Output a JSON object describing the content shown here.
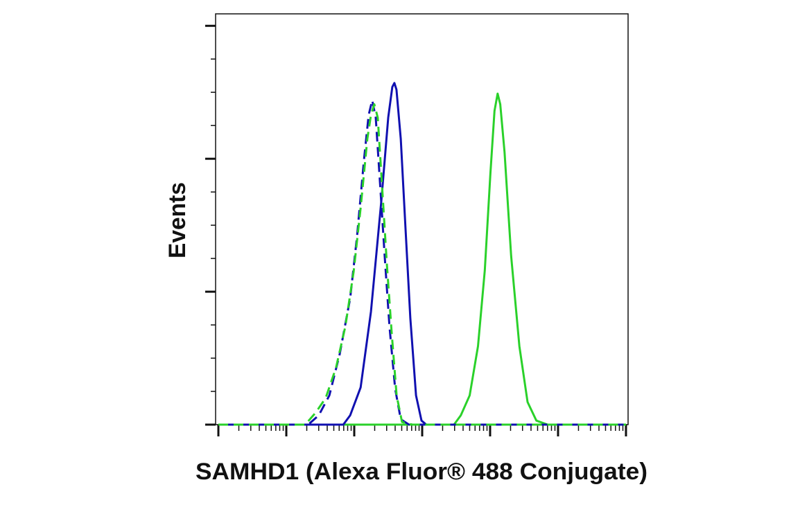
{
  "chart_data": {
    "type": "line",
    "xlabel": "SAMHD1 (Alexa Fluor® 488 Conjugate)",
    "ylabel": "Events",
    "xscale": "log",
    "xlim": [
      0.91,
      1074000
    ],
    "xticks": [
      1,
      10,
      100,
      1000,
      10000,
      100000,
      1000000
    ],
    "xminorticks": [
      2,
      3,
      4,
      5,
      6,
      7,
      8,
      9,
      20,
      30,
      40,
      50,
      60,
      70,
      80,
      90,
      200,
      300,
      400,
      500,
      600,
      700,
      800,
      900,
      2000,
      3000,
      4000,
      5000,
      6000,
      7000,
      8000,
      9000,
      20000,
      30000,
      40000,
      50000,
      60000,
      70000,
      80000,
      90000,
      200000,
      300000,
      400000,
      500000,
      600000,
      700000,
      800000,
      900000
    ],
    "ylim": [
      0,
      309
    ],
    "yticks": [
      0,
      100,
      200,
      300
    ],
    "yminorticks": [
      25,
      50,
      75,
      125,
      150,
      175,
      225,
      250,
      275
    ],
    "series": [
      {
        "color": "#2ad12a",
        "dashed": false,
        "x": [
          1,
          2940,
          3700,
          5000,
          6630,
          8350,
          10100,
          11600,
          12900,
          14100,
          16300,
          20400,
          27000,
          35600,
          48000,
          70300,
          1000000
        ],
        "values": [
          0,
          0,
          7,
          22,
          59,
          116,
          189,
          236,
          249,
          241,
          205,
          127,
          59,
          17,
          3,
          0,
          0
        ]
      },
      {
        "color": "#1010b0",
        "dashed": false,
        "x": [
          1,
          69,
          87,
          124,
          176,
          250,
          316,
          363,
          390,
          418,
          484,
          569,
          670,
          811,
          976,
          1150,
          1000000
        ],
        "values": [
          0,
          0,
          7,
          28,
          85,
          168,
          231,
          254,
          257,
          252,
          215,
          147,
          80,
          22,
          3,
          0,
          0
        ]
      },
      {
        "color": "#1010b0",
        "dashed": true,
        "x": [
          1,
          21,
          30,
          43,
          61,
          87,
          110,
          139,
          163,
          184,
          207,
          238,
          281,
          330,
          400,
          484,
          640,
          1000000
        ],
        "values": [
          0,
          0,
          7,
          22,
          53,
          95,
          142,
          199,
          233,
          244,
          231,
          184,
          126,
          74,
          27,
          4,
          0,
          0
        ]
      },
      {
        "color": "#2ad12a",
        "dashed": true,
        "x": [
          1,
          19,
          27,
          38,
          54,
          74,
          98,
          124,
          156,
          176,
          197,
          222,
          250,
          302,
          356,
          420,
          505,
          719,
          1000000
        ],
        "values": [
          0,
          0,
          9,
          20,
          43,
          74,
          115,
          163,
          215,
          233,
          241,
          231,
          189,
          121,
          69,
          22,
          2,
          0,
          0
        ]
      }
    ]
  }
}
